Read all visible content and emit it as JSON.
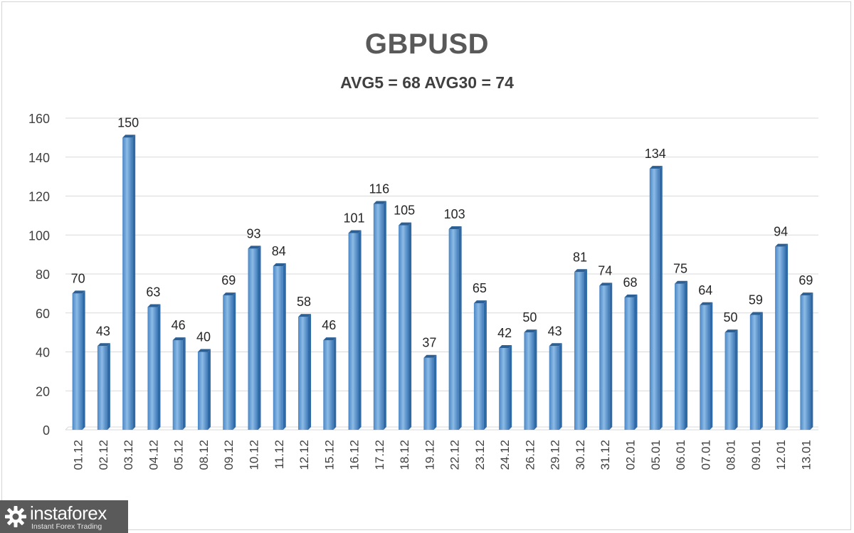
{
  "chart_data": {
    "type": "bar",
    "title": "GBPUSD",
    "subtitle": "AVG5 = 68 AVG30 = 74",
    "categories": [
      "01.12",
      "02.12",
      "03.12",
      "04.12",
      "05.12",
      "08.12",
      "09.12",
      "10.12",
      "11.12",
      "12.12",
      "15.12",
      "16.12",
      "17.12",
      "18.12",
      "19.12",
      "22.12",
      "23.12",
      "24.12",
      "26.12",
      "29.12",
      "30.12",
      "31.12",
      "02.01",
      "05.01",
      "06.01",
      "07.01",
      "08.01",
      "09.01",
      "12.01",
      "13.01"
    ],
    "values": [
      70,
      43,
      150,
      63,
      46,
      40,
      69,
      93,
      84,
      58,
      46,
      101,
      116,
      105,
      37,
      103,
      65,
      42,
      50,
      43,
      81,
      74,
      68,
      134,
      75,
      64,
      50,
      59,
      94,
      69
    ],
    "ylim": [
      0,
      160
    ],
    "yticks": [
      0,
      20,
      40,
      60,
      80,
      100,
      120,
      140,
      160
    ],
    "grid": true,
    "legend": "none",
    "bar_color": "#5b9bd5"
  },
  "logo": {
    "name": "instaforex",
    "tagline": "Instant Forex Trading"
  }
}
